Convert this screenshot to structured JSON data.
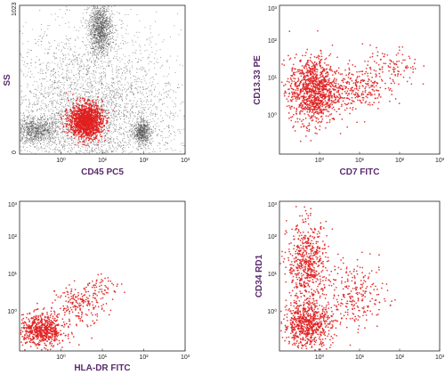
{
  "colors": {
    "event": "#e02020",
    "background_event": "#555555",
    "axis_title": "#5b2b6e"
  },
  "chart_data": [
    {
      "type": "scatter",
      "title": "",
      "xlabel": "CD45 PC5",
      "ylabel": "SS",
      "x_scale": "log",
      "y_scale": "linear",
      "xlim": [
        0.1,
        1000
      ],
      "ylim": [
        0,
        1023
      ],
      "x_ticks": [
        "10⁰",
        "10¹",
        "10²",
        "10³"
      ],
      "y_ticks": [
        "0",
        "1023"
      ],
      "grid": false,
      "series": [
        {
          "name": "",
          "color": "#555555",
          "clusters": [
            {
              "x": 0.25,
              "y": 160,
              "sx": 0.3,
              "sy": 45,
              "n": 900
            },
            {
              "x": 9,
              "y": 860,
              "sx": 0.14,
              "sy": 90,
              "n": 1300
            },
            {
              "x": 90,
              "y": 150,
              "sx": 0.1,
              "sy": 40,
              "n": 600
            },
            {
              "x": 5,
              "y": 250,
              "sx": 1.1,
              "sy": 300,
              "n": 4200
            }
          ]
        },
        {
          "name": "",
          "color": "#e02020",
          "clusters": [
            {
              "x": 4,
              "y": 230,
              "sx": 0.2,
              "sy": 60,
              "n": 1300
            }
          ]
        }
      ]
    },
    {
      "type": "scatter",
      "title": "",
      "xlabel": "CD7 FITC",
      "ylabel": "CD13.33 PE",
      "x_scale": "log",
      "y_scale": "log",
      "xlim": [
        0.1,
        1000
      ],
      "ylim": [
        0.1,
        1000
      ],
      "x_ticks": [
        "10⁰",
        "10¹",
        "10²",
        "10³"
      ],
      "y_ticks": [
        "10⁰",
        "10¹",
        "10²",
        "10³"
      ],
      "grid": false,
      "series": [
        {
          "name": "",
          "color": "#e02020",
          "clusters": [
            {
              "x": 0.7,
              "y": 5,
              "sx": 0.3,
              "sy": 0.45,
              "n": 1100
            },
            {
              "x": 8,
              "y": 6,
              "sx": 0.35,
              "sy": 0.3,
              "n": 250
            },
            {
              "x": 60,
              "y": 20,
              "sx": 0.35,
              "sy": 0.3,
              "n": 120
            }
          ]
        }
      ]
    },
    {
      "type": "scatter",
      "title": "",
      "xlabel": "HLA-DR FITC",
      "ylabel": "",
      "x_scale": "log",
      "y_scale": "log",
      "xlim": [
        0.1,
        1000
      ],
      "ylim": [
        0.1,
        1000
      ],
      "x_ticks": [
        "10⁰",
        "10¹",
        "10²",
        "10³"
      ],
      "y_ticks": [
        "10⁰",
        "10¹",
        "10²",
        "10³"
      ],
      "grid": false,
      "series": [
        {
          "name": "",
          "color": "#e02020",
          "clusters": [
            {
              "x": 0.35,
              "y": 0.35,
              "sx": 0.28,
              "sy": 0.22,
              "n": 650
            },
            {
              "x": 3,
              "y": 1.8,
              "sx": 0.3,
              "sy": 0.25,
              "n": 200
            },
            {
              "x": 12,
              "y": 6,
              "sx": 0.2,
              "sy": 0.15,
              "n": 40
            }
          ]
        }
      ]
    },
    {
      "type": "scatter",
      "title": "",
      "xlabel": "",
      "ylabel": "CD34 RD1",
      "x_scale": "log",
      "y_scale": "log",
      "xlim": [
        0.1,
        1000
      ],
      "ylim": [
        0.1,
        1000
      ],
      "x_ticks": [
        "10⁰",
        "10¹",
        "10²",
        "10³"
      ],
      "y_ticks": [
        "10⁰",
        "10¹",
        "10²",
        "10³"
      ],
      "grid": false,
      "series": [
        {
          "name": "",
          "color": "#e02020",
          "clusters": [
            {
              "x": 0.5,
              "y": 0.5,
              "sx": 0.3,
              "sy": 0.3,
              "n": 700
            },
            {
              "x": 0.5,
              "y": 20,
              "sx": 0.25,
              "sy": 0.55,
              "n": 600
            },
            {
              "x": 8,
              "y": 3,
              "sx": 0.4,
              "sy": 0.45,
              "n": 250
            }
          ]
        }
      ]
    }
  ]
}
